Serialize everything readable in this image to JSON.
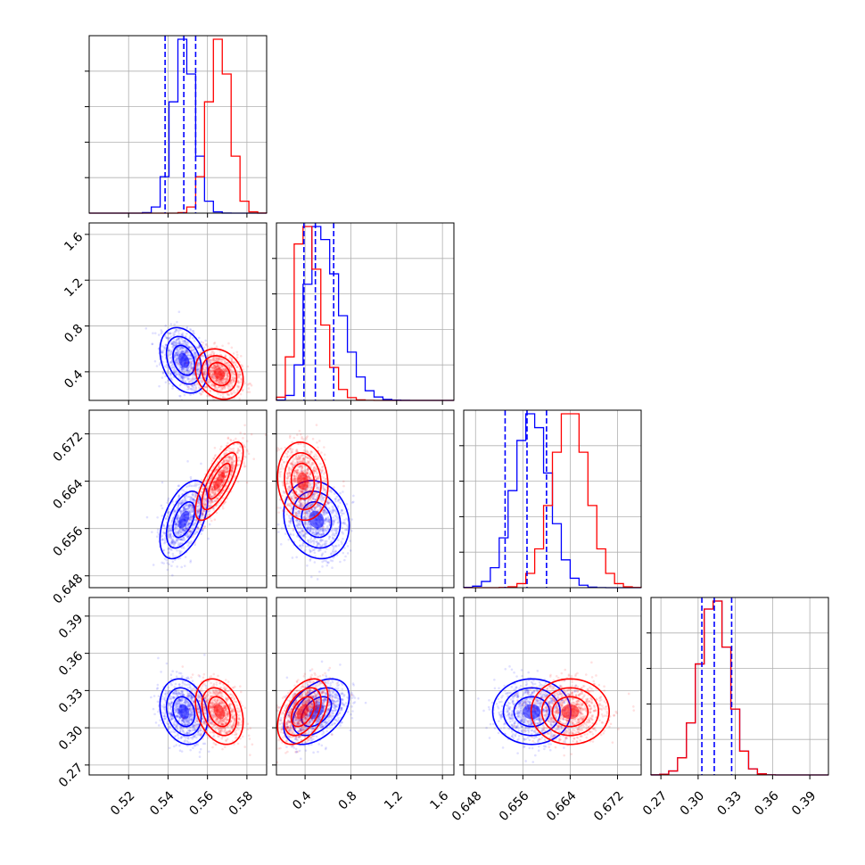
{
  "colors": {
    "blue": "#0000ff",
    "red": "#ff0000"
  },
  "chart_data": {
    "type": "corner",
    "grid": true,
    "series": [
      {
        "color": "#0000ff",
        "center": [
          0.548,
          0.5,
          0.6575,
          0.313
        ],
        "sigma": [
          0.0055,
          0.13,
          0.003,
          0.012
        ],
        "corr": {
          "0-1": -0.3,
          "0-2": 0.5,
          "0-3": -0.2,
          "1-2": -0.15,
          "1-3": 0.45,
          "2-3": 0.0
        },
        "quantiles": {
          "p0": [
            0.5385,
            0.548,
            0.554
          ],
          "p1": [
            0.39,
            0.49,
            0.65
          ],
          "p2": [
            0.653,
            0.6567,
            0.66
          ],
          "p3": [
            0.303,
            0.313,
            0.327
          ]
        }
      },
      {
        "color": "#ff0000",
        "center": [
          0.566,
          0.38,
          0.664,
          0.313
        ],
        "sigma": [
          0.0055,
          0.1,
          0.003,
          0.012
        ],
        "corr": {
          "0-1": -0.2,
          "0-2": 0.75,
          "0-3": -0.3,
          "1-2": -0.1,
          "1-3": 0.45,
          "2-3": 0.0
        }
      }
    ],
    "params": [
      {
        "range": [
          0.5,
          0.59
        ],
        "ticks": [
          "0.52",
          "0.54",
          "0.56",
          "0.58"
        ]
      },
      {
        "range": [
          0.15,
          1.7
        ],
        "ticks": [
          "0.4",
          "0.8",
          "1.2",
          "1.6"
        ]
      },
      {
        "range": [
          0.646,
          0.676
        ],
        "ticks": [
          "0.648",
          "0.656",
          "0.664",
          "0.672"
        ]
      },
      {
        "range": [
          0.262,
          0.405
        ],
        "ticks": [
          "0.27",
          "0.30",
          "0.33",
          "0.36",
          "0.39"
        ]
      }
    ]
  }
}
